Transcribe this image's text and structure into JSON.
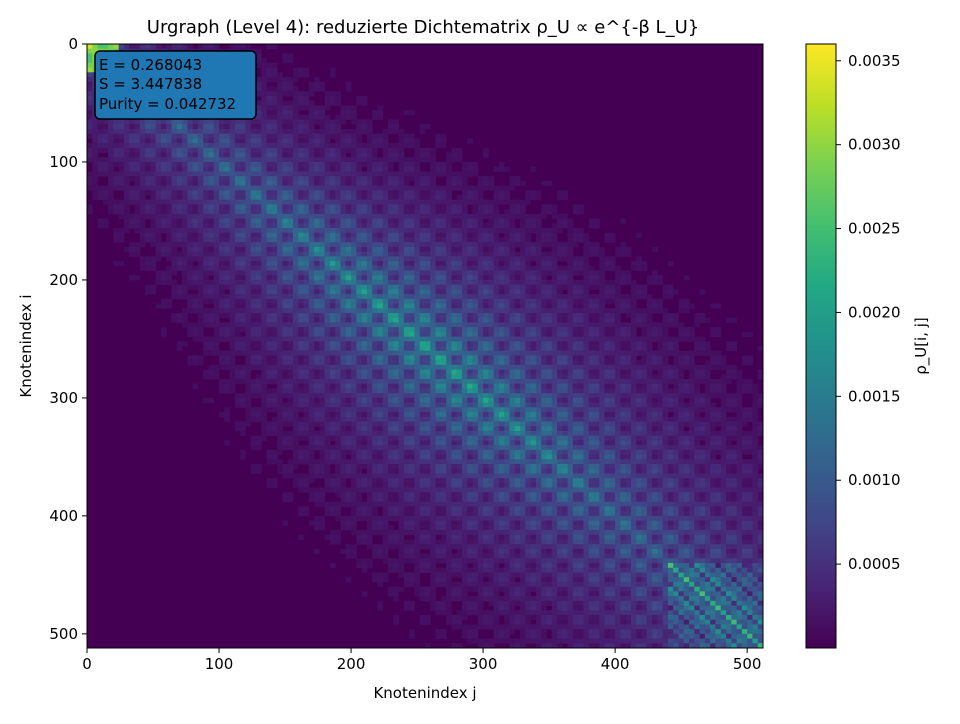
{
  "chart_data": {
    "type": "heatmap",
    "title": "Urgraph (Level 4): reduzierte Dichtematrix ρ_U ∝ e^{-β L_U}",
    "xlabel": "Knotenindex j",
    "ylabel": "Knotenindex i",
    "colorbar_label": "ρ_U[i, j]",
    "colormap": "viridis",
    "matrix_size": 512,
    "xlim": [
      0,
      512
    ],
    "ylim": [
      512,
      0
    ],
    "x_ticks": [
      "0",
      "100",
      "200",
      "300",
      "400",
      "500"
    ],
    "y_ticks": [
      "0",
      "100",
      "200",
      "300",
      "400",
      "500"
    ],
    "x_tick_values": [
      0,
      100,
      200,
      300,
      400,
      500
    ],
    "y_tick_values": [
      0,
      100,
      200,
      300,
      400,
      500
    ],
    "color_range": [
      0.0,
      0.0036
    ],
    "colorbar_ticks": [
      "0.0005",
      "0.0010",
      "0.0015",
      "0.0020",
      "0.0025",
      "0.0030",
      "0.0035"
    ],
    "colorbar_tick_values": [
      0.0005,
      0.001,
      0.0015,
      0.002,
      0.0025,
      0.003,
      0.0035
    ],
    "annotation": {
      "lines": [
        "E = 0.268043",
        "S = 3.447838",
        "Purity = 0.042732"
      ],
      "placement": "top-left",
      "box_color": "#1f77b4"
    },
    "background_value_color": "#440154"
  }
}
